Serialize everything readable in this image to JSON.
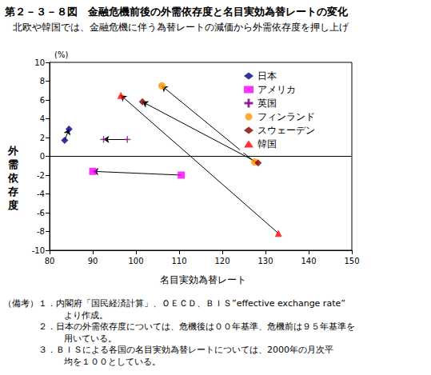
{
  "chart_data": {
    "type": "scatter",
    "title": "第２－３－８図　金融危機前後の外需依存度と名目実効為替レートの変化",
    "subtitle": "北欧や韓国では、金融危機に伴う為替レートの減価から外需依存度を押し上げ",
    "x_label": "名目実効為替レート",
    "y_label": "外需依存度",
    "y_unit": "(%)",
    "xlim": [
      80,
      150
    ],
    "xticks": [
      80,
      90,
      100,
      110,
      120,
      130,
      140,
      150
    ],
    "ylim": [
      -10,
      10
    ],
    "yticks": [
      -10,
      -8,
      -6,
      -4,
      -2,
      0,
      2,
      4,
      6,
      8,
      10
    ],
    "grid": false,
    "legend": "upper right",
    "series": [
      {
        "name": "日本",
        "color": "#000080",
        "marker": "diamond",
        "x": [
          83.5,
          84.5
        ],
        "y": [
          1.7,
          2.9
        ]
      },
      {
        "name": "アメリカ",
        "color": "#FF00FF",
        "marker": "square",
        "x": [
          110.5,
          90
        ],
        "y": [
          -2.0,
          -1.6
        ]
      },
      {
        "name": "英国",
        "color": "#800080",
        "marker": "asterisk",
        "x": [
          98,
          92.5
        ],
        "y": [
          1.8,
          1.8
        ]
      },
      {
        "name": "フィンランド",
        "color": "#FF9900",
        "marker": "circle",
        "x": [
          127.5,
          106
        ],
        "y": [
          -0.6,
          7.5
        ]
      },
      {
        "name": "スウェーデン",
        "color": "#800000",
        "marker": "diamond",
        "x": [
          128.3,
          101.5
        ],
        "y": [
          -0.7,
          5.8
        ]
      },
      {
        "name": "韓国",
        "color": "#FF0000",
        "marker": "triangle",
        "x": [
          133,
          96.5
        ],
        "y": [
          -8.2,
          6.5
        ]
      }
    ],
    "notes_label": "（備考）",
    "notes": [
      {
        "number": "１．",
        "lines": [
          "内閣府「国民経済計算」、ＯＥＣＤ、ＢＩＳ”effective exchange rate”",
          "より作成。"
        ]
      },
      {
        "number": "２．",
        "lines": [
          "日本の外需依存度については、危機後は００年基準、危機前は９５年基準を",
          "用いている。"
        ]
      },
      {
        "number": "３．",
        "lines": [
          "ＢＩＳによる各国の名目実効為替レートについては、2000年の月次平",
          "均を１００としている。"
        ]
      }
    ]
  }
}
